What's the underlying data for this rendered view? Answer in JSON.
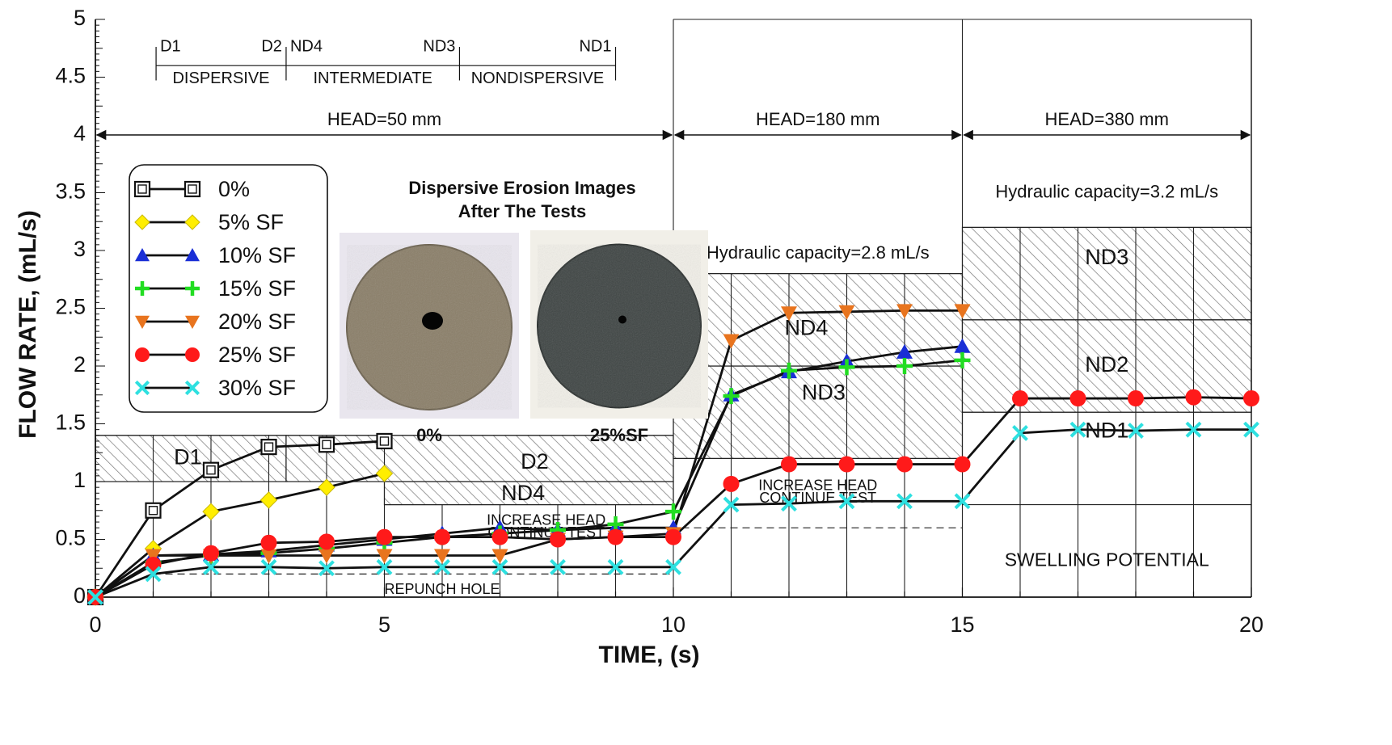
{
  "chart_data": {
    "type": "line",
    "xlabel": "TIME, (s)",
    "ylabel": "FLOW RATE, (mL/s)",
    "xlim": [
      0,
      20
    ],
    "ylim": [
      0,
      5
    ],
    "xticks": [
      "0",
      "5",
      "10",
      "15",
      "20"
    ],
    "yticks": [
      "0",
      "0.5",
      "1",
      "1.5",
      "2",
      "2.5",
      "3",
      "3.5",
      "4",
      "4.5",
      "5"
    ],
    "grid": true,
    "legend_position": "top-left",
    "series": [
      {
        "name": "0%",
        "marker": "square-open",
        "color": "#111111",
        "x": [
          0,
          1,
          2,
          3,
          4,
          5
        ],
        "y": [
          0,
          0.75,
          1.1,
          1.3,
          1.32,
          1.35
        ]
      },
      {
        "name": "5%  SF",
        "marker": "diamond",
        "color": "#ffee00",
        "x": [
          0,
          1,
          2,
          3,
          4,
          5
        ],
        "y": [
          0,
          0.42,
          0.74,
          0.84,
          0.95,
          1.07
        ]
      },
      {
        "name": "10% SF",
        "marker": "triangle-up",
        "color": "#1a2fd6",
        "x": [
          0,
          1,
          2,
          3,
          4,
          5,
          6,
          7,
          8,
          9,
          10,
          11,
          12,
          13,
          14,
          15
        ],
        "y": [
          0,
          0.36,
          0.37,
          0.4,
          0.45,
          0.5,
          0.55,
          0.6,
          0.58,
          0.6,
          0.6,
          1.75,
          1.95,
          2.04,
          2.12,
          2.17
        ]
      },
      {
        "name": "15% SF",
        "marker": "plus",
        "color": "#22dd22",
        "x": [
          0,
          1,
          2,
          3,
          4,
          5,
          6,
          7,
          8,
          9,
          10,
          11,
          12,
          13,
          14,
          15
        ],
        "y": [
          0,
          0.3,
          0.36,
          0.38,
          0.42,
          0.47,
          0.52,
          0.55,
          0.58,
          0.63,
          0.74,
          1.74,
          1.96,
          1.99,
          2.0,
          2.05
        ]
      },
      {
        "name": "20% SF",
        "marker": "triangle-down",
        "color": "#e8741e",
        "x": [
          0,
          1,
          2,
          3,
          4,
          5,
          6,
          7,
          8,
          9,
          10,
          11,
          12,
          13,
          14,
          15
        ],
        "y": [
          0,
          0.36,
          0.36,
          0.36,
          0.36,
          0.36,
          0.36,
          0.36,
          0.5,
          0.52,
          0.55,
          2.22,
          2.46,
          2.47,
          2.48,
          2.48
        ]
      },
      {
        "name": "25% SF",
        "marker": "circle",
        "color": "#ff1a1a",
        "x": [
          0,
          1,
          2,
          3,
          4,
          5,
          6,
          7,
          8,
          9,
          10,
          11,
          12,
          13,
          14,
          15,
          16,
          17,
          18,
          19,
          20
        ],
        "y": [
          0,
          0.28,
          0.38,
          0.47,
          0.48,
          0.52,
          0.52,
          0.52,
          0.5,
          0.52,
          0.52,
          0.98,
          1.15,
          1.15,
          1.15,
          1.15,
          1.72,
          1.72,
          1.72,
          1.73,
          1.72
        ]
      },
      {
        "name": "30% SF",
        "marker": "x",
        "color": "#2ee0e0",
        "x": [
          0,
          1,
          2,
          3,
          4,
          5,
          6,
          7,
          8,
          9,
          10,
          11,
          12,
          13,
          14,
          15,
          16,
          17,
          18,
          19,
          20
        ],
        "y": [
          0,
          0.2,
          0.26,
          0.26,
          0.25,
          0.26,
          0.26,
          0.26,
          0.26,
          0.26,
          0.26,
          0.8,
          0.81,
          0.83,
          0.83,
          0.83,
          1.42,
          1.45,
          1.44,
          1.45,
          1.45
        ]
      }
    ],
    "hatched_zones": [
      {
        "label": "D1",
        "x": [
          0,
          3.3
        ],
        "y": [
          1.0,
          1.4
        ]
      },
      {
        "label": "D2",
        "x": [
          3.3,
          10
        ],
        "y": [
          1.0,
          1.4
        ]
      },
      {
        "label": "",
        "x": [
          5,
          10
        ],
        "y": [
          0.8,
          1.0
        ]
      },
      {
        "label": "",
        "x": [
          10,
          15
        ],
        "y": [
          1.2,
          2.0
        ]
      },
      {
        "label": "",
        "x": [
          10,
          15
        ],
        "y": [
          2.0,
          2.8
        ]
      },
      {
        "label": "",
        "x": [
          15,
          20
        ],
        "y": [
          1.6,
          2.4
        ]
      },
      {
        "label": "",
        "x": [
          15,
          20
        ],
        "y": [
          2.4,
          3.2
        ]
      }
    ],
    "zone_labels": [
      {
        "text": "D1",
        "x": 1.6,
        "y": 1.2
      },
      {
        "text": "D2",
        "x": 7.6,
        "y": 1.16
      },
      {
        "text": "ND4",
        "x": 7.4,
        "y": 0.89
      },
      {
        "text": "ND4",
        "x": 12.3,
        "y": 2.32
      },
      {
        "text": "ND3",
        "x": 12.6,
        "y": 1.76
      },
      {
        "text": "ND3",
        "x": 17.5,
        "y": 2.93
      },
      {
        "text": "ND2",
        "x": 17.5,
        "y": 2.0
      },
      {
        "text": "ND1",
        "x": 17.5,
        "y": 1.43
      }
    ],
    "dashed_lines": [
      {
        "x": [
          1,
          10
        ],
        "y": [
          0.2,
          0.2
        ]
      },
      {
        "x": [
          7,
          15
        ],
        "y": [
          0.6,
          0.6
        ]
      }
    ],
    "annotations": [
      {
        "text": "INCREASE HEAD",
        "x": 7.8,
        "y": 0.66
      },
      {
        "text": "CONTINUE TEST",
        "x": 7.8,
        "y": 0.55
      },
      {
        "text": "REPUNCH HOLE",
        "x": 6.0,
        "y": 0.06
      },
      {
        "text": "INCREASE HEAD",
        "x": 12.5,
        "y": 0.96
      },
      {
        "text": "CONTINUE TEST",
        "x": 12.5,
        "y": 0.85
      },
      {
        "text": "SWELLING POTENTIAL",
        "x": 17.5,
        "y": 0.31
      },
      {
        "text": "Hydraulic capacity=2.8 mL/s",
        "x": 12.5,
        "y": 2.97
      },
      {
        "text": "Hydraulic capacity=3.2 mL/s",
        "x": 17.5,
        "y": 3.5
      }
    ],
    "heads": [
      {
        "label": "HEAD=50 mm",
        "x": [
          0,
          10
        ],
        "y": 4.0
      },
      {
        "label": "HEAD=180 mm",
        "x": [
          10,
          15
        ],
        "y": 4.0
      },
      {
        "label": "HEAD=380 mm",
        "x": [
          15,
          20
        ],
        "y": 4.0
      }
    ],
    "classification": {
      "markers": [
        {
          "label": "D1",
          "x": 1.05
        },
        {
          "label": "D2",
          "x": 3.3
        },
        {
          "label": "ND4",
          "x": 3.3
        },
        {
          "label": "ND3",
          "x": 6.3
        },
        {
          "label": "ND1",
          "x": 9.0
        }
      ],
      "categories": [
        {
          "label": "DISPERSIVE",
          "x": [
            1.05,
            3.3
          ]
        },
        {
          "label": "INTERMEDIATE",
          "x": [
            3.3,
            6.3
          ]
        },
        {
          "label": "NONDISPERSIVE",
          "x": [
            6.3,
            9.0
          ]
        }
      ]
    },
    "inset": {
      "title_line1": "Dispersive Erosion Images",
      "title_line2": "After The Tests",
      "photos": [
        {
          "label": "0%",
          "color": "#8a7e68"
        },
        {
          "label": "25%SF",
          "color": "#3e4443"
        }
      ]
    }
  }
}
